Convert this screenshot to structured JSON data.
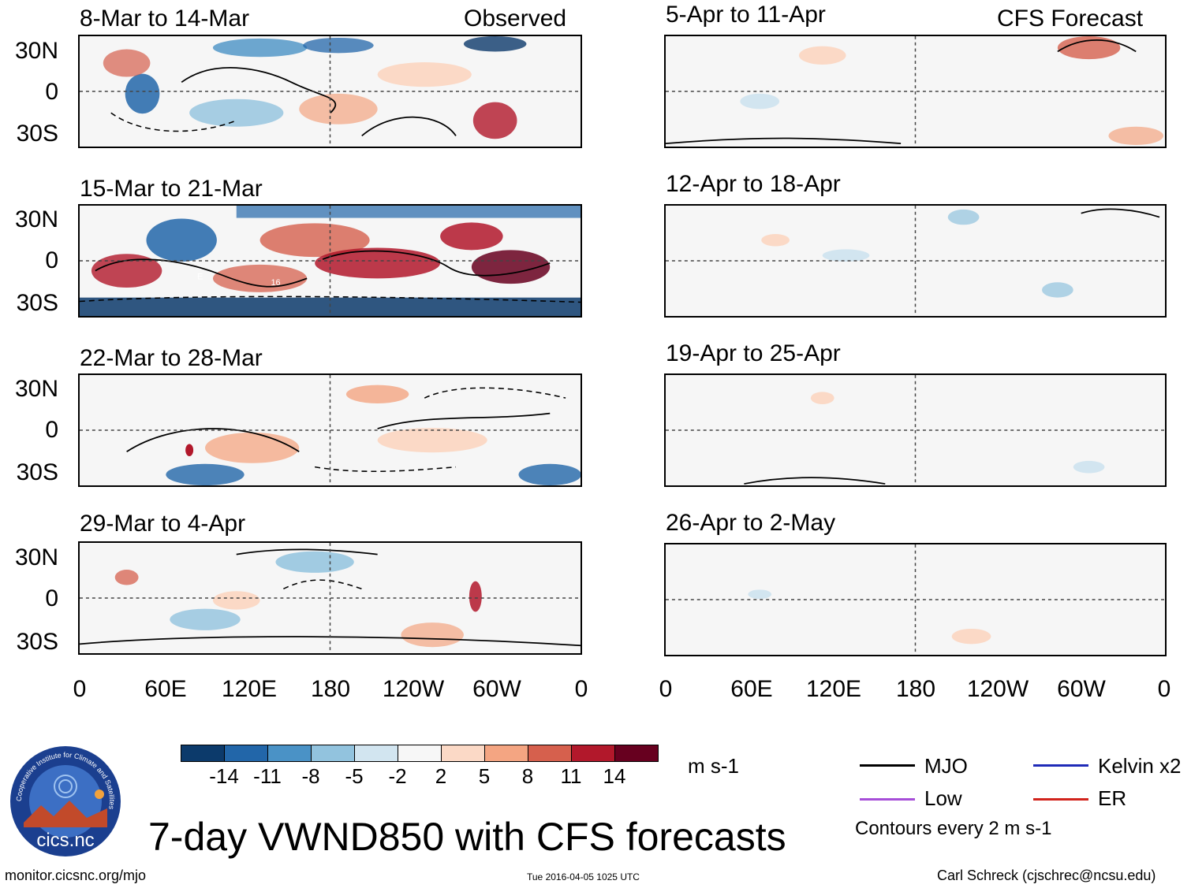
{
  "title": "7-day VWND850 with CFS forecasts",
  "url": "monitor.cicsnc.org/mjo",
  "timestamp": "Tue 2016-04-05 1025 UTC",
  "author": "Carl Schreck (cjschrec@ncsu.edu)",
  "logo": {
    "ring_text": "Cooperative Institute for Climate and Satellites",
    "name": "cics.nc"
  },
  "columns": {
    "left_label": "Observed",
    "right_label": "CFS Forecast"
  },
  "panels_left": [
    "8-Mar to 14-Mar",
    "15-Mar to 21-Mar",
    "22-Mar to 28-Mar",
    "29-Mar to 4-Apr"
  ],
  "panels_right": [
    "5-Apr to 11-Apr",
    "12-Apr to 18-Apr",
    "19-Apr to 25-Apr",
    "26-Apr to 2-May"
  ],
  "y_ticks": [
    "30N",
    "0",
    "30S"
  ],
  "x_ticks": [
    "0",
    "60E",
    "120E",
    "180",
    "120W",
    "60W",
    "0"
  ],
  "colorbar": {
    "colors": [
      "#0c3a6b",
      "#2266a9",
      "#4a92c6",
      "#92c3de",
      "#d2e5f0",
      "#f7f7f7",
      "#fbd9c6",
      "#f4a582",
      "#d6604d",
      "#b2182b",
      "#67001f"
    ],
    "labels": [
      "-14",
      "-11",
      "-8",
      "-5",
      "-2",
      "2",
      "5",
      "8",
      "11",
      "14"
    ],
    "units": "m s-1"
  },
  "legend": {
    "items": [
      {
        "label": "MJO",
        "color": "#000000"
      },
      {
        "label": "Kelvin x2",
        "color": "#1f2bb8"
      },
      {
        "label": "Low",
        "color": "#a64ed8"
      },
      {
        "label": "ER",
        "color": "#d1231c"
      }
    ],
    "note": "Contours every 2 m s-1"
  },
  "annotations": [
    "E",
    "16"
  ]
}
